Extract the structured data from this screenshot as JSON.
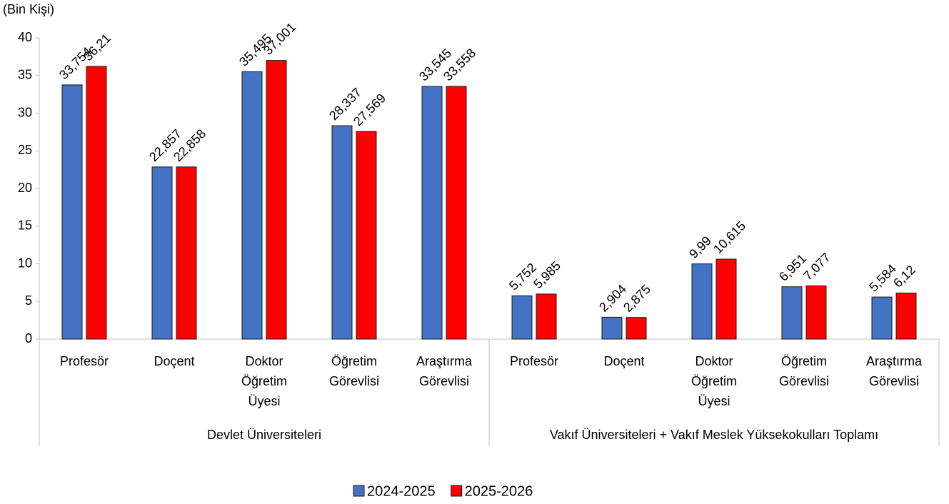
{
  "chart_data": {
    "type": "bar",
    "y_axis_label": "(Bin Kişi)",
    "categories": [
      "Profesör",
      "Doçent",
      "Doktor Öğretim Üyesi",
      "Öğretim Görevlisi",
      "Araştırma Görevlisi",
      "Profesör",
      "Doçent",
      "Doktor Öğretim Üyesi",
      "Öğretim Görevlisi",
      "Araştırma Görevlisi"
    ],
    "category_groups": [
      "Devlet Üniversiteleri",
      "Vakıf Üniversiteleri + Vakıf Meslek Yüksekokulları Toplamı"
    ],
    "series": [
      {
        "name": "2024-2025",
        "color": "#4472c4",
        "values": [
          33.754,
          22.857,
          35.495,
          28.337,
          33.545,
          5.752,
          2.904,
          9.99,
          6.951,
          5.584
        ],
        "value_labels": [
          "33,754",
          "22,857",
          "35,495",
          "28,337",
          "33,545",
          "5,752",
          "2,904",
          "9,99",
          "6,951",
          "5,584"
        ]
      },
      {
        "name": "2025-2026",
        "color": "#ff0000",
        "values": [
          36.21,
          22.858,
          37.001,
          27.569,
          33.558,
          5.985,
          2.875,
          10.615,
          7.077,
          6.12
        ],
        "value_labels": [
          "36,21",
          "22,858",
          "37,001",
          "27,569",
          "33,558",
          "5,985",
          "2,875",
          "10,615",
          "7,077",
          "6,12"
        ]
      }
    ],
    "ylim": [
      0,
      40
    ],
    "yticks": [
      0,
      5,
      10,
      15,
      20,
      25,
      30,
      35,
      40
    ],
    "grid": false,
    "legend": "bottom"
  }
}
